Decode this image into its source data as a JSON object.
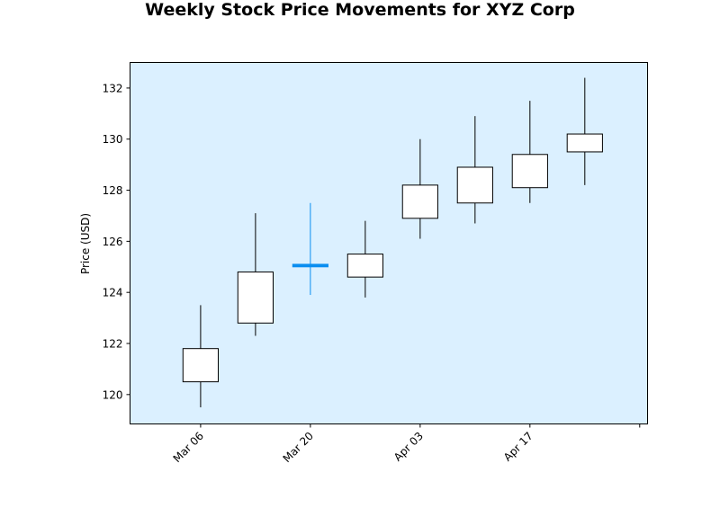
{
  "chart_data": {
    "type": "candlestick",
    "title": "Weekly Stock Price Movements for XYZ Corp",
    "xlabel": "",
    "ylabel": "Price (USD)",
    "ylim": [
      118.85,
      133.0
    ],
    "xlim": [
      "2023-02-25",
      "2023-05-02"
    ],
    "grid": false,
    "plot_background": "#dbf0ff",
    "up_color": "#ffffff",
    "down_color": "#ffffff",
    "doji_color": "#0a8ef0",
    "x_tick_labels": [
      {
        "date": "2023-03-06",
        "label": "Mar 06"
      },
      {
        "date": "2023-03-20",
        "label": "Mar 20"
      },
      {
        "date": "2023-04-03",
        "label": "Apr 03"
      },
      {
        "date": "2023-04-17",
        "label": "Apr 17"
      },
      {
        "date": "2023-05-01",
        "label": ""
      }
    ],
    "y_ticks": [
      120,
      122,
      124,
      126,
      128,
      130,
      132
    ],
    "candles": [
      {
        "date": "2023-03-06",
        "open": 120.5,
        "high": 123.5,
        "low": 119.5,
        "close": 121.8
      },
      {
        "date": "2023-03-13",
        "open": 122.8,
        "high": 127.1,
        "low": 122.3,
        "close": 124.8
      },
      {
        "date": "2023-03-20",
        "open": 125.0,
        "high": 127.5,
        "low": 123.9,
        "close": 125.1
      },
      {
        "date": "2023-03-27",
        "open": 124.6,
        "high": 126.8,
        "low": 123.8,
        "close": 125.5
      },
      {
        "date": "2023-04-03",
        "open": 126.9,
        "high": 130.0,
        "low": 126.1,
        "close": 128.2
      },
      {
        "date": "2023-04-10",
        "open": 127.5,
        "high": 130.9,
        "low": 126.7,
        "close": 128.9
      },
      {
        "date": "2023-04-17",
        "open": 128.1,
        "high": 131.5,
        "low": 127.5,
        "close": 129.4
      },
      {
        "date": "2023-04-24",
        "open": 129.5,
        "high": 132.4,
        "low": 128.2,
        "close": 130.2
      }
    ]
  }
}
